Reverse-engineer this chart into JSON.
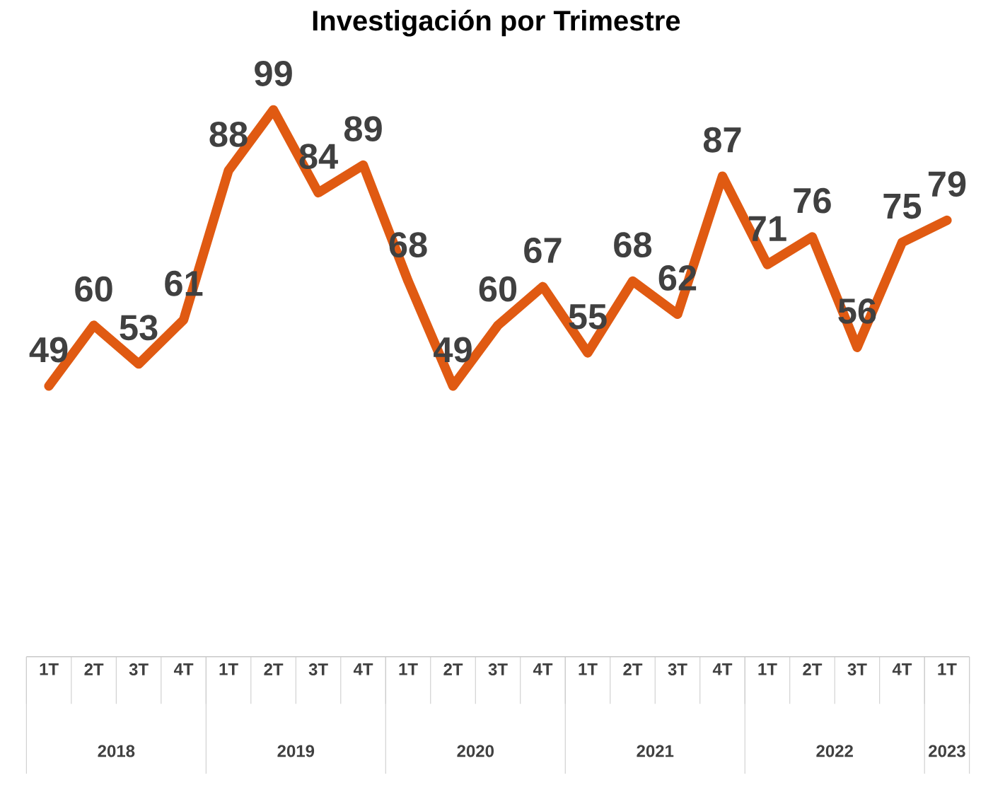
{
  "chart_data": {
    "type": "line",
    "title": "Investigación por Trimestre",
    "categories": [
      "1T",
      "2T",
      "3T",
      "4T",
      "1T",
      "2T",
      "3T",
      "4T",
      "1T",
      "2T",
      "3T",
      "4T",
      "1T",
      "2T",
      "3T",
      "4T",
      "1T",
      "2T",
      "3T",
      "4T",
      "1T"
    ],
    "values": [
      49,
      60,
      53,
      61,
      88,
      99,
      84,
      89,
      68,
      49,
      60,
      67,
      55,
      68,
      62,
      87,
      71,
      76,
      56,
      75,
      79
    ],
    "color": "#e05a12",
    "tick_labels": "x",
    "data_labels": true,
    "marker": "none",
    "line_style": "solid",
    "annotations": [
      "2018",
      "2019",
      "2020",
      "2021",
      "2022",
      "2023"
    ]
  }
}
